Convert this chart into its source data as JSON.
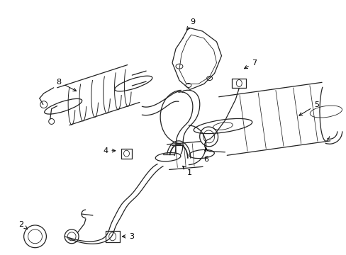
{
  "bg_color": "#ffffff",
  "line_color": "#222222",
  "label_color": "#000000",
  "fs": 8,
  "lw": 0.9
}
